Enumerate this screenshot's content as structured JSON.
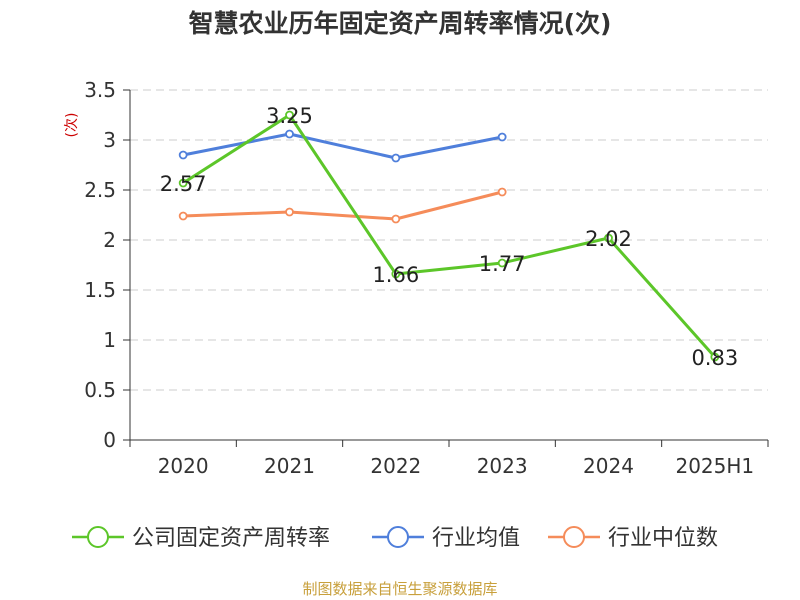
{
  "chart_data": {
    "type": "line",
    "title": "智慧农业历年固定资产周转率情况(次)",
    "ylabel": "(次)",
    "xlabel": "",
    "categories": [
      "2020",
      "2021",
      "2022",
      "2023",
      "2024",
      "2025H1"
    ],
    "ylim": [
      0,
      3.5
    ],
    "yticks": [
      "0",
      "0.5",
      "1",
      "1.5",
      "2",
      "2.5",
      "3",
      "3.5"
    ],
    "grid": true,
    "legend_position": "bottom",
    "series": [
      {
        "name": "公司固定资产周转率",
        "color": "#5cc629",
        "values": [
          2.57,
          3.25,
          1.66,
          1.77,
          2.02,
          0.83
        ],
        "labels": [
          "2.57",
          "3.25",
          "1.66",
          "1.77",
          "2.02",
          "0.83"
        ]
      },
      {
        "name": "行业均值",
        "color": "#4f7fdb",
        "values": [
          2.85,
          3.06,
          2.82,
          3.03,
          null,
          null
        ]
      },
      {
        "name": "行业中位数",
        "color": "#f58c5a",
        "values": [
          2.24,
          2.28,
          2.21,
          2.48,
          null,
          null
        ]
      }
    ]
  },
  "source": "制图数据来自恒生聚源数据库",
  "colors": {
    "axis": "#333333",
    "grid": "#cccccc",
    "ylabel": "#cc0000",
    "source": "#c8a03c"
  }
}
